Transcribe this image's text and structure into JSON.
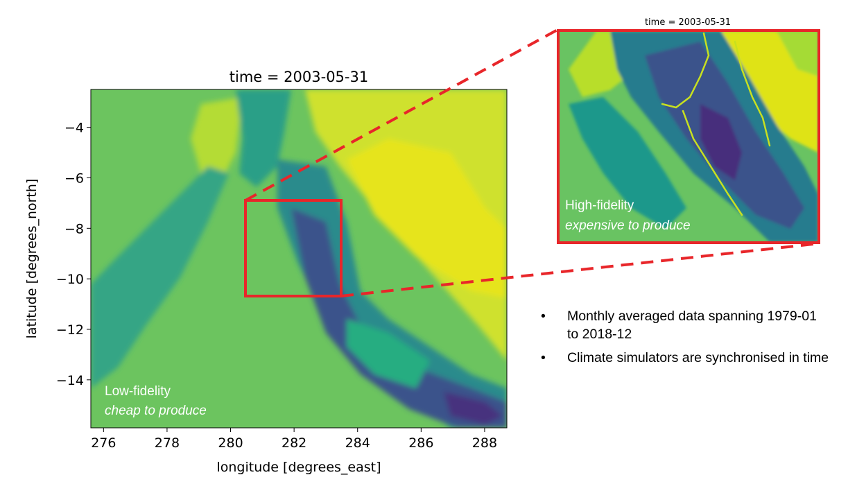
{
  "chart_data": [
    {
      "type": "heatmap",
      "title": "time = 2003-05-31",
      "xlabel": "longitude [degrees_east]",
      "ylabel": "latitude [degrees_north]",
      "xlim": [
        275.6,
        288.7
      ],
      "ylim": [
        -15.9,
        -2.5
      ],
      "xticks": [
        276,
        278,
        280,
        282,
        284,
        286,
        288
      ],
      "yticks": [
        -4,
        -6,
        -8,
        -10,
        -12,
        -14
      ],
      "colormap": "viridis",
      "annotation": {
        "line1": "Low-fidelity",
        "line2": "cheap to produce"
      },
      "zoom_region": {
        "lon": [
          280.5,
          283.4
        ],
        "lat": [
          -10.6,
          -6.8
        ]
      }
    },
    {
      "type": "heatmap",
      "title": "time = 2003-05-31",
      "colormap": "viridis",
      "annotation": {
        "line1": "High-fidelity",
        "line2": "expensive to produce"
      }
    }
  ],
  "bullets": [
    {
      "text": "Monthly averaged data spanning 1979-01 to 2018-12"
    },
    {
      "text": "Climate simulators are synchronised in time"
    }
  ],
  "colors": {
    "highlight": "#e8262a",
    "annotation_text": "#ffffff"
  }
}
